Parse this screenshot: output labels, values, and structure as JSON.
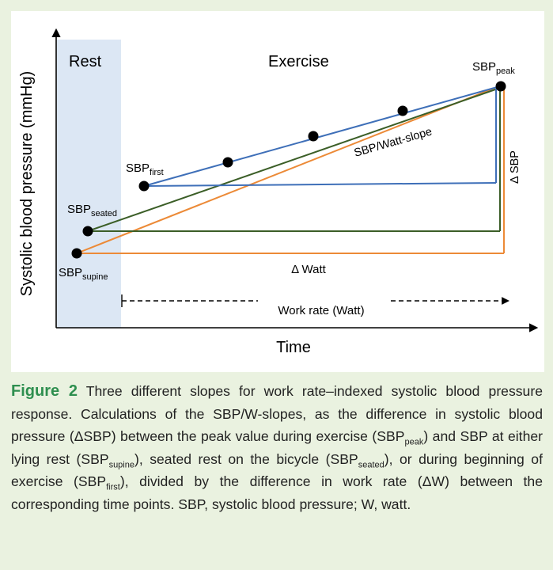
{
  "diagram": {
    "y_axis_label": "Systolic blood pressure (mmHg)",
    "x_axis_label": "Time",
    "rest_label": "Rest",
    "exercise_label": "Exercise",
    "points": {
      "peak": {
        "main": "SBP",
        "sub": "peak"
      },
      "first": {
        "main": "SBP",
        "sub": "first"
      },
      "seated": {
        "main": "SBP",
        "sub": "seated"
      },
      "supine": {
        "main": "SBP",
        "sub": "supine"
      }
    },
    "slope_label": "SBP/Watt-slope",
    "delta_sbp_label": "Δ SBP",
    "delta_watt_label": "Δ Watt",
    "work_rate_label": "Work rate (Watt)",
    "colors": {
      "first_slope": "#3e6fb8",
      "seated_slope": "#3b5e27",
      "supine_slope": "#ec8a37",
      "rest_band": "#dce7f4",
      "points": "#000000"
    }
  },
  "caption": {
    "figure_label": "Figure 2",
    "t1": " Three different slopes for work rate–indexed systolic blood pressure response. Calculations of the SBP/W-slopes, as the difference in systolic blood pressure (ΔSBP) between the peak value during exercise (SBP",
    "s1": "peak",
    "t2": ") and SBP at either lying rest (SBP",
    "s2": "supine",
    "t3": "), seated rest on the bicycle (SBP",
    "s3": "seated",
    "t4": "), or during beginning of exercise (SBP",
    "s4": "first",
    "t5": "), divided by the difference in work rate (ΔW) between the corresponding time points. SBP, systolic blood pressure; W, watt."
  }
}
